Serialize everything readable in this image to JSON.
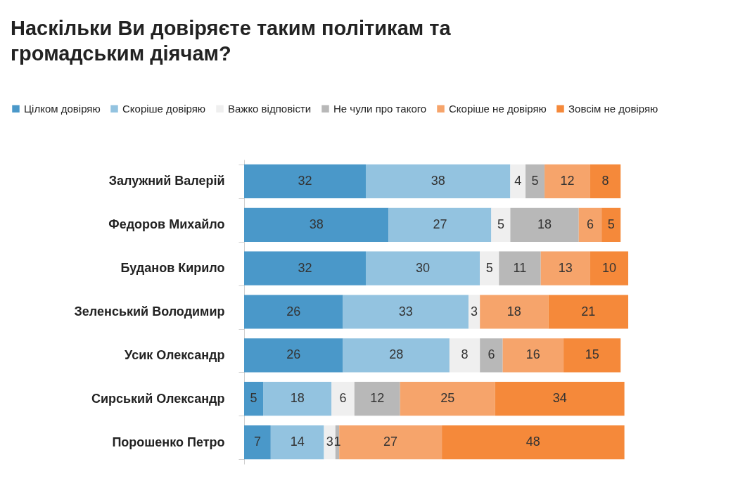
{
  "chart_data": {
    "type": "bar",
    "orientation": "horizontal",
    "stacked": true,
    "data_labels": true,
    "legend": "top",
    "grid": false,
    "title": "Наскільки Ви довіряєте таким політикам та громадським діячам?",
    "categories": [
      "Залужний Валерій",
      "Федоров Михайло",
      "Буданов Кирило",
      "Зеленський Володимир",
      "Усик Олександр",
      "Сирський Олександр",
      "Порошенко Петро"
    ],
    "series": [
      {
        "name": "Цілком довіряю",
        "color": "#4a98c9",
        "values": [
          32,
          38,
          32,
          26,
          26,
          5,
          7
        ]
      },
      {
        "name": "Скоріше довіряю",
        "color": "#93c3e0",
        "values": [
          38,
          27,
          30,
          33,
          28,
          18,
          14
        ]
      },
      {
        "name": "Важко відповісти",
        "color": "#efefef",
        "values": [
          4,
          5,
          5,
          3,
          8,
          6,
          3
        ]
      },
      {
        "name": "Не чули про такого",
        "color": "#b8b8b8",
        "values": [
          5,
          18,
          11,
          null,
          6,
          12,
          1
        ]
      },
      {
        "name": "Скоріше не довіряю",
        "color": "#f6a46b",
        "values": [
          12,
          6,
          13,
          18,
          16,
          25,
          27
        ]
      },
      {
        "name": "Зовсім не довіряю",
        "color": "#f5893a",
        "values": [
          8,
          5,
          10,
          21,
          15,
          34,
          48
        ]
      }
    ]
  }
}
